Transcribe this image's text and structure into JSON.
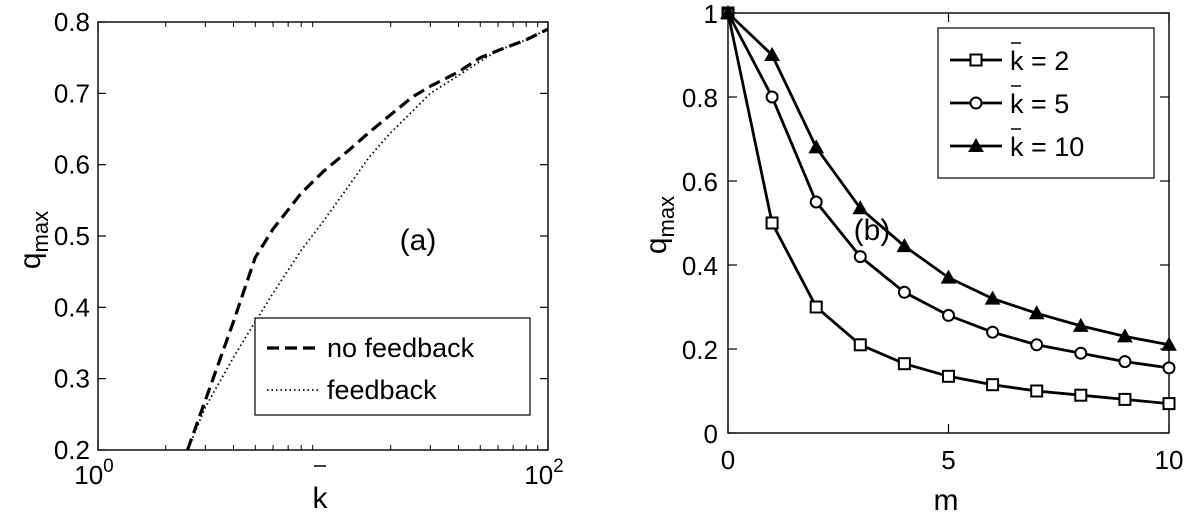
{
  "chart_data": [
    {
      "type": "line",
      "annotation": "(a)",
      "xlabel": "k",
      "xlabel_bar": true,
      "ylabel": {
        "main": "q",
        "sub": "max"
      },
      "xscale": "log",
      "xlim": [
        1,
        100
      ],
      "ylim": [
        0.2,
        0.8
      ],
      "xticks": [
        {
          "value": 1,
          "base": "10",
          "exp": "0"
        },
        {
          "value": 100,
          "base": "10",
          "exp": "2"
        }
      ],
      "yticks": [
        "0.2",
        "0.3",
        "0.4",
        "0.5",
        "0.6",
        "0.7",
        "0.8"
      ],
      "grid": false,
      "legend_position": "bottom-right",
      "series": [
        {
          "name": "no feedback",
          "style": "dashed",
          "x": [
            2.5,
            3,
            4,
            5,
            6,
            8,
            10,
            13,
            16,
            20,
            25,
            30,
            40,
            50,
            60,
            80,
            100
          ],
          "y": [
            0.2,
            0.27,
            0.38,
            0.47,
            0.51,
            0.56,
            0.59,
            0.62,
            0.645,
            0.67,
            0.695,
            0.71,
            0.73,
            0.75,
            0.76,
            0.775,
            0.79
          ]
        },
        {
          "name": "feedback",
          "style": "dotted",
          "x": [
            2.5,
            3,
            4,
            5,
            6,
            8,
            10,
            13,
            16,
            20,
            25,
            30,
            40,
            50,
            60,
            80,
            100
          ],
          "y": [
            0.2,
            0.26,
            0.33,
            0.38,
            0.42,
            0.48,
            0.52,
            0.57,
            0.61,
            0.645,
            0.675,
            0.7,
            0.725,
            0.745,
            0.76,
            0.775,
            0.79
          ]
        }
      ]
    },
    {
      "type": "line",
      "annotation": "(b)",
      "xlabel": "m",
      "ylabel": {
        "main": "q",
        "sub": "max"
      },
      "xlim": [
        0,
        10
      ],
      "ylim": [
        0,
        1
      ],
      "xticks": [
        "0",
        "5",
        "10"
      ],
      "yticks": [
        "0",
        "0.2",
        "0.4",
        "0.6",
        "0.8",
        "1"
      ],
      "grid": false,
      "legend_position": "top-right",
      "x": [
        0,
        1,
        2,
        3,
        4,
        5,
        6,
        7,
        8,
        9,
        10
      ],
      "series": [
        {
          "name": "k = 2",
          "marker": "square",
          "values": [
            1.0,
            0.5,
            0.3,
            0.21,
            0.165,
            0.135,
            0.115,
            0.1,
            0.09,
            0.08,
            0.07
          ]
        },
        {
          "name": "k = 5",
          "marker": "circle",
          "values": [
            1.0,
            0.8,
            0.55,
            0.42,
            0.335,
            0.28,
            0.24,
            0.21,
            0.19,
            0.17,
            0.155
          ]
        },
        {
          "name": "k = 10",
          "marker": "triangle",
          "values": [
            1.0,
            0.9,
            0.68,
            0.535,
            0.445,
            0.37,
            0.32,
            0.285,
            0.255,
            0.23,
            0.21
          ]
        }
      ]
    }
  ]
}
